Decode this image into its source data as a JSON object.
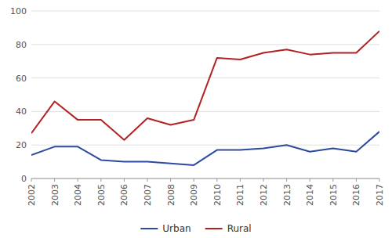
{
  "chart_data": {
    "type": "line",
    "x": [
      2002,
      2003,
      2004,
      2005,
      2006,
      2007,
      2008,
      2009,
      2010,
      2011,
      2012,
      2013,
      2014,
      2015,
      2016,
      2017
    ],
    "series": [
      {
        "name": "Urban",
        "color": "#2E4A9E",
        "values": [
          14,
          19,
          19,
          11,
          10,
          10,
          9,
          8,
          17,
          17,
          18,
          20,
          16,
          18,
          16,
          28
        ]
      },
      {
        "name": "Rural",
        "color": "#B22222",
        "values": [
          27,
          46,
          35,
          35,
          23,
          36,
          32,
          35,
          72,
          71,
          75,
          77,
          74,
          75,
          75,
          88
        ]
      }
    ],
    "xlim": [
      2002,
      2017
    ],
    "xticks": [
      2002,
      2003,
      2004,
      2005,
      2006,
      2007,
      2008,
      2009,
      2010,
      2011,
      2012,
      2013,
      2014,
      2015,
      2016,
      2017
    ],
    "ylim": [
      0,
      100
    ],
    "yticks": [
      0,
      20,
      40,
      60,
      80,
      100
    ],
    "grid": true,
    "legend": "bottom"
  }
}
